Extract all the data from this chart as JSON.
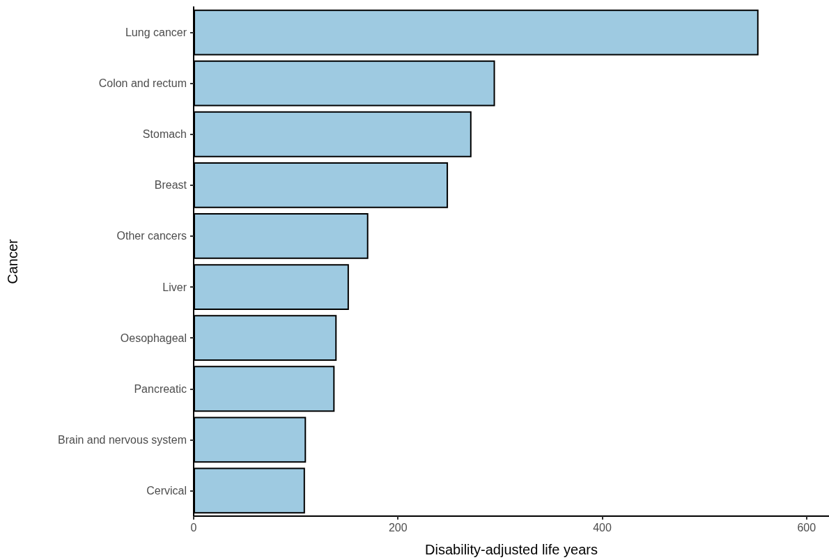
{
  "chart_data": {
    "type": "bar",
    "orientation": "horizontal",
    "xlabel": "Disability-adjusted life years",
    "ylabel": "Cancer",
    "categories": [
      "Lung cancer",
      "Colon and rectum",
      "Stomach",
      "Breast",
      "Other cancers",
      "Liver",
      "Oesophageal",
      "Pancreatic",
      "Brain and nervous system",
      "Cervical"
    ],
    "values": [
      553,
      295,
      272,
      249,
      171,
      152,
      140,
      138,
      110,
      109
    ],
    "color": "#9ecae1",
    "xlim": [
      0,
      622
    ],
    "xticks": [
      0,
      200,
      400,
      600
    ],
    "grid": false
  }
}
